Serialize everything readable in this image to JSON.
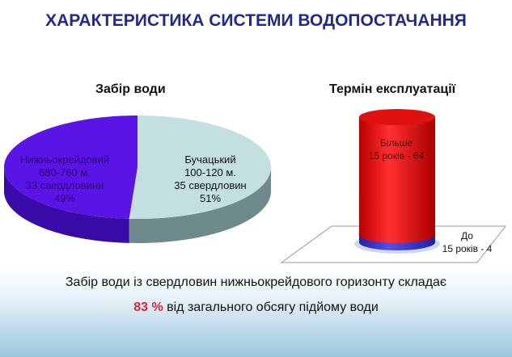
{
  "title": "ХАРАКТЕРИСТИКА СИСТЕМИ ВОДОПОСТАЧАННЯ",
  "chart_data": [
    {
      "type": "pie",
      "title": "Забір води",
      "slices": [
        {
          "name": "Бучацький",
          "depth": "100-120 м.",
          "wells": "35 свердловин",
          "percent_label": "51%",
          "value": 51,
          "color": "#c3dfe0"
        },
        {
          "name": "Нижньокрейдовий",
          "depth": "680-760 м.",
          "wells": "33 свердловини",
          "percent_label": "49%",
          "value": 49,
          "color": "#5a14e6"
        }
      ]
    },
    {
      "type": "bar",
      "title": "Термін експлуатації",
      "series": [
        {
          "name": "Більше 15 років",
          "label_line1": "Більше",
          "label_line2": "15 років - 64",
          "value": 64,
          "color": "#e8161a"
        },
        {
          "name": "До 15 років",
          "label_line1": "До",
          "label_line2": "15 років - 4",
          "value": 4,
          "color": "#3a3ad8"
        }
      ]
    }
  ],
  "footer": {
    "line1": "Забір води із свердловин нижньокрейдового горизонту складає",
    "highlight": "83 %",
    "line2": " від загального обсягу підйому води"
  }
}
